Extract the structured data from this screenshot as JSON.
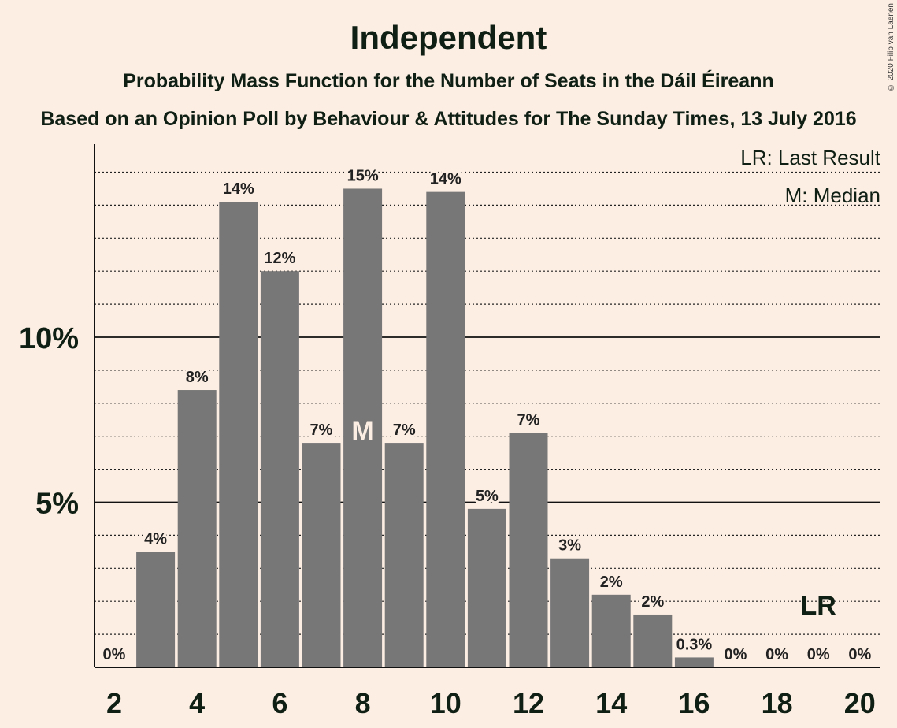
{
  "title": "Independent",
  "subtitle": "Probability Mass Function for the Number of Seats in the Dáil Éireann",
  "subtitle2": "Based on an Opinion Poll by Behaviour & Attitudes for The Sunday Times, 13 July 2016",
  "copyright": "© 2020 Filip van Laenen",
  "legend": {
    "last_result": "LR: Last Result",
    "median": "M: Median"
  },
  "colors": {
    "background": "#FDEEE3",
    "bar": "#777777",
    "text": "#0f1f14"
  },
  "chart_data": {
    "type": "bar",
    "xlim": [
      2,
      20
    ],
    "ylim": [
      0,
      15.8
    ],
    "x_ticks": [
      "2",
      "4",
      "6",
      "8",
      "10",
      "12",
      "14",
      "16",
      "18",
      "20"
    ],
    "y_ticks": [
      {
        "value": 5,
        "label": "5%"
      },
      {
        "value": 10,
        "label": "10%"
      }
    ],
    "minor_grid_step": 1,
    "categories": [
      2,
      3,
      4,
      5,
      6,
      7,
      8,
      9,
      10,
      11,
      12,
      13,
      14,
      15,
      16,
      17,
      18,
      19,
      20
    ],
    "values": [
      0,
      3.5,
      8.4,
      14.1,
      12.0,
      6.8,
      14.5,
      6.8,
      14.4,
      4.8,
      7.1,
      3.3,
      2.2,
      1.6,
      0.3,
      0,
      0,
      0,
      0
    ],
    "labels": [
      "0%",
      "4%",
      "8%",
      "14%",
      "12%",
      "7%",
      "15%",
      "7%",
      "14%",
      "5%",
      "7%",
      "3%",
      "2%",
      "2%",
      "0.3%",
      "0%",
      "0%",
      "0%",
      "0%"
    ],
    "median_seat": 8,
    "median_label": "M",
    "last_result_seat": 19,
    "last_result_label": "LR",
    "grid": true
  }
}
